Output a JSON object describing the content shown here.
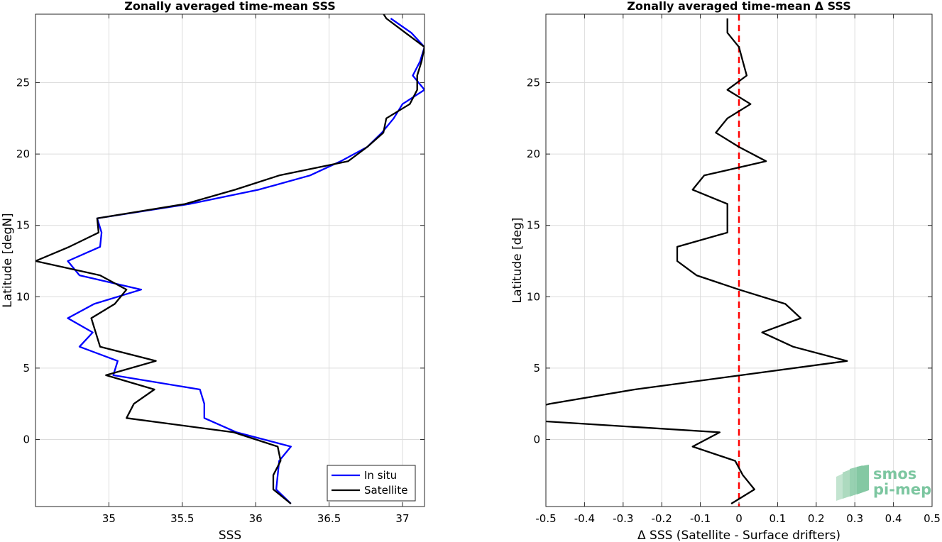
{
  "chart_data": [
    {
      "type": "line",
      "title": "Zonally averaged time-mean SSS",
      "xlabel": "SSS",
      "ylabel": "Latitude [degN]",
      "xlim": [
        34.5,
        37.15
      ],
      "ylim": [
        -4.7,
        29.8
      ],
      "xticks": [
        35,
        35.5,
        36,
        36.5,
        37
      ],
      "xtick_labels": [
        "35",
        "35.5",
        "36",
        "36.5",
        "37"
      ],
      "yticks": [
        0,
        5,
        10,
        15,
        20,
        25
      ],
      "ytick_labels": [
        "0",
        "5",
        "10",
        "15",
        "20",
        "25"
      ],
      "grid": true,
      "legend": {
        "placement": "bottom-right",
        "entries": [
          "In situ",
          "Satellite"
        ]
      },
      "series": [
        {
          "name": "In situ",
          "color": "#0000ff",
          "points": [
            [
              36.24,
              -4.5
            ],
            [
              36.14,
              -3.5
            ],
            [
              36.15,
              -2.5
            ],
            [
              36.16,
              -1.5
            ],
            [
              36.24,
              -0.5
            ],
            [
              35.87,
              0.5
            ],
            [
              35.65,
              1.5
            ],
            [
              35.65,
              2.5
            ],
            [
              35.62,
              3.5
            ],
            [
              35.03,
              4.5
            ],
            [
              35.06,
              5.5
            ],
            [
              34.8,
              6.5
            ],
            [
              34.89,
              7.5
            ],
            [
              34.72,
              8.5
            ],
            [
              34.9,
              9.5
            ],
            [
              35.22,
              10.5
            ],
            [
              34.8,
              11.5
            ],
            [
              34.72,
              12.5
            ],
            [
              34.94,
              13.5
            ],
            [
              34.95,
              14.5
            ],
            [
              34.92,
              15.5
            ],
            [
              35.55,
              16.5
            ],
            [
              36.02,
              17.5
            ],
            [
              36.37,
              18.5
            ],
            [
              36.58,
              19.5
            ],
            [
              36.76,
              20.5
            ],
            [
              36.86,
              21.5
            ],
            [
              36.94,
              22.5
            ],
            [
              37.0,
              23.5
            ],
            [
              37.15,
              24.5
            ],
            [
              37.07,
              25.5
            ],
            [
              37.12,
              26.5
            ],
            [
              37.15,
              27.5
            ],
            [
              37.06,
              28.5
            ],
            [
              36.92,
              29.5
            ]
          ]
        },
        {
          "name": "Satellite",
          "color": "#000000",
          "points": [
            [
              36.24,
              -4.5
            ],
            [
              36.12,
              -3.5
            ],
            [
              36.12,
              -2.5
            ],
            [
              36.17,
              -1.5
            ],
            [
              36.15,
              -0.5
            ],
            [
              35.85,
              0.5
            ],
            [
              35.12,
              1.5
            ],
            [
              35.17,
              2.5
            ],
            [
              35.31,
              3.5
            ],
            [
              34.98,
              4.5
            ],
            [
              35.32,
              5.5
            ],
            [
              34.94,
              6.5
            ],
            [
              34.91,
              7.5
            ],
            [
              34.88,
              8.5
            ],
            [
              35.04,
              9.5
            ],
            [
              35.12,
              10.5
            ],
            [
              34.94,
              11.5
            ],
            [
              34.5,
              12.5
            ],
            [
              34.73,
              13.5
            ],
            [
              34.93,
              14.5
            ],
            [
              34.92,
              15.5
            ],
            [
              35.52,
              16.5
            ],
            [
              35.86,
              17.5
            ],
            [
              36.16,
              18.5
            ],
            [
              36.63,
              19.5
            ],
            [
              36.76,
              20.5
            ],
            [
              36.87,
              21.5
            ],
            [
              36.89,
              22.5
            ],
            [
              37.05,
              23.5
            ],
            [
              37.1,
              24.5
            ],
            [
              37.1,
              25.5
            ],
            [
              37.13,
              26.5
            ],
            [
              37.15,
              27.5
            ],
            [
              37.02,
              28.5
            ],
            [
              36.89,
              29.5
            ],
            [
              36.86,
              30.0
            ]
          ]
        }
      ]
    },
    {
      "type": "line",
      "title": "Zonally averaged time-mean Δ SSS",
      "xlabel": "Δ SSS (Satellite - Surface drifters)",
      "ylabel": "Latitude [deg]",
      "xlim": [
        -0.5,
        0.5
      ],
      "ylim": [
        -4.7,
        29.8
      ],
      "xticks": [
        -0.5,
        -0.4,
        -0.3,
        -0.2,
        -0.1,
        0,
        0.1,
        0.2,
        0.3,
        0.4,
        0.5
      ],
      "xtick_labels": [
        "-0.5",
        "-0.4",
        "-0.3",
        "-0.2",
        "-0.1",
        "0",
        "0.1",
        "0.2",
        "0.3",
        "0.4",
        "0.5"
      ],
      "yticks": [
        0,
        5,
        10,
        15,
        20,
        25
      ],
      "ytick_labels": [
        "0",
        "5",
        "10",
        "15",
        "20",
        "25"
      ],
      "grid": true,
      "reference_line": {
        "x": 0,
        "color": "#ff0000",
        "style": "dashed"
      },
      "series": [
        {
          "color": "#000000",
          "points": [
            [
              -0.02,
              -4.5
            ],
            [
              0.04,
              -3.5
            ],
            [
              0.01,
              -2.5
            ],
            [
              -0.01,
              -1.5
            ],
            [
              -0.12,
              -0.5
            ],
            [
              -0.05,
              0.5
            ],
            [
              -0.52,
              1.3
            ],
            [
              -0.52,
              2.3
            ],
            [
              -0.49,
              2.5
            ],
            [
              -0.27,
              3.5
            ],
            [
              0.28,
              5.5
            ],
            [
              0.14,
              6.5
            ],
            [
              0.06,
              7.5
            ],
            [
              0.16,
              8.5
            ],
            [
              0.12,
              9.5
            ],
            [
              0.0,
              10.5
            ],
            [
              -0.11,
              11.5
            ],
            [
              -0.16,
              12.5
            ],
            [
              -0.16,
              13.5
            ],
            [
              -0.03,
              14.5
            ],
            [
              -0.03,
              15.5
            ],
            [
              -0.03,
              16.5
            ],
            [
              -0.12,
              17.5
            ],
            [
              -0.09,
              18.5
            ],
            [
              0.07,
              19.5
            ],
            [
              0.0,
              20.5
            ],
            [
              -0.06,
              21.5
            ],
            [
              -0.03,
              22.5
            ],
            [
              0.03,
              23.5
            ],
            [
              -0.03,
              24.5
            ],
            [
              0.02,
              25.5
            ],
            [
              0.01,
              26.5
            ],
            [
              0.0,
              27.5
            ],
            [
              -0.03,
              28.5
            ],
            [
              -0.03,
              29.5
            ]
          ]
        }
      ]
    }
  ],
  "logo": {
    "line1": "smos",
    "line2": "pi-mep"
  }
}
